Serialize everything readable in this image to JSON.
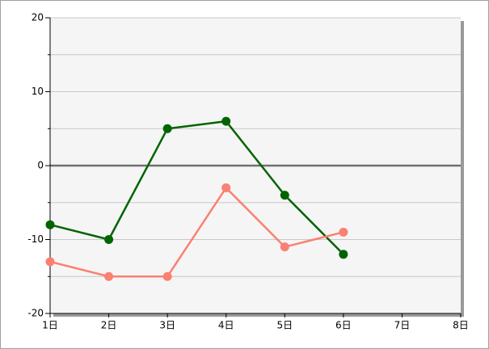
{
  "chart_data": {
    "type": "line",
    "x": [
      1,
      2,
      3,
      4,
      5,
      6
    ],
    "series": [
      {
        "color": "#006400",
        "values": [
          -8,
          -10,
          5,
          6,
          -4,
          -12
        ]
      },
      {
        "color": "#fa8072",
        "values": [
          -13,
          -15,
          -15,
          -3,
          -11,
          -9
        ]
      }
    ],
    "xlim": [
      1,
      8
    ],
    "xticks": [
      {
        "value": 1,
        "label": "1日"
      },
      {
        "value": 2,
        "label": "2日"
      },
      {
        "value": 3,
        "label": "3日"
      },
      {
        "value": 4,
        "label": "4日"
      },
      {
        "value": 5,
        "label": "5日"
      },
      {
        "value": 6,
        "label": "6日"
      },
      {
        "value": 7,
        "label": "7日"
      },
      {
        "value": 8,
        "label": "8日"
      }
    ],
    "ylim": [
      -20,
      20
    ],
    "yticks": [
      -20,
      -10,
      0,
      10,
      20
    ],
    "minor_yticks": [
      -15,
      -5,
      5,
      15
    ],
    "grid": true
  }
}
